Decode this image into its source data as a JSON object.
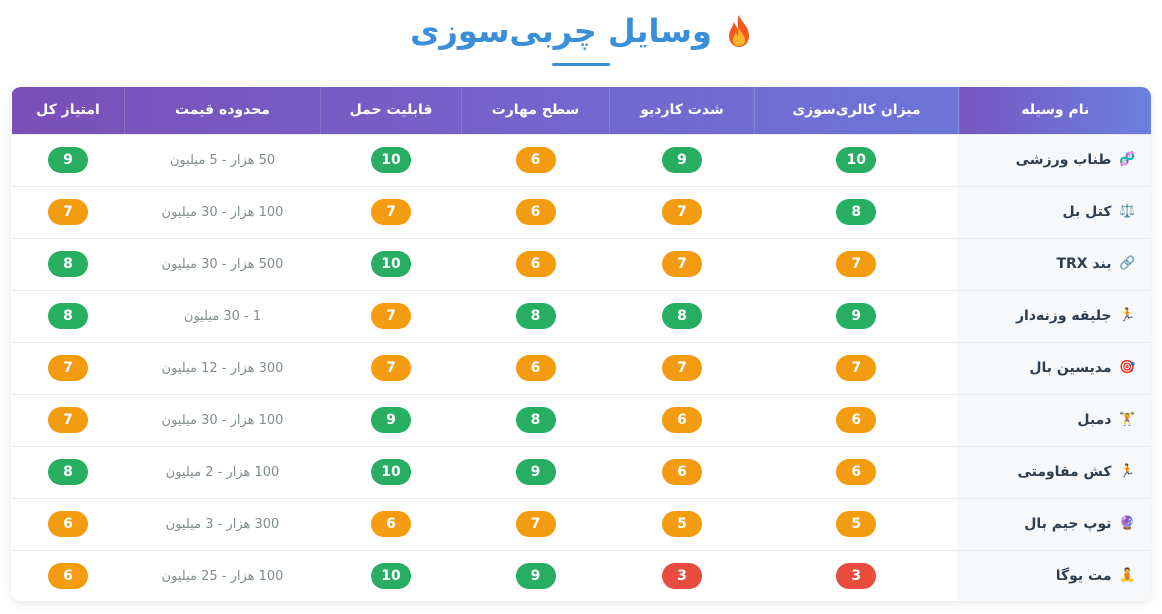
{
  "page": {
    "title": "وسایل چربی‌سوزی",
    "title_icon": "fire-icon",
    "accent_color": "#3a8fd8"
  },
  "table": {
    "headers": {
      "name": "نام وسیله",
      "calorie_burn": "میزان کالری‌سوزی",
      "cardio_intensity": "شدت کاردیو",
      "skill_level": "سطح مهارت",
      "portability": "قابلیت حمل",
      "price_range": "محدوده قیمت",
      "total_score": "امتیاز کل"
    },
    "colors": {
      "green": "#27ae60",
      "orange": "#f39c12",
      "red": "#e74c3c"
    },
    "rows": [
      {
        "icon": "jump-rope-icon",
        "emoji": "🧬",
        "name": "طناب ورزشی",
        "calorie": "10",
        "cardio": "9",
        "skill": "6",
        "portability": "10",
        "price": "50 هزار - 5 میلیون",
        "total": "9"
      },
      {
        "icon": "kettlebell-icon",
        "emoji": "⚖️",
        "name": "کتل بل",
        "calorie": "8",
        "cardio": "7",
        "skill": "6",
        "portability": "7",
        "price": "100 هزار - 30 میلیون",
        "total": "7"
      },
      {
        "icon": "trx-strap-icon",
        "emoji": "🔗",
        "name": "بند TRX",
        "calorie": "7",
        "cardio": "7",
        "skill": "6",
        "portability": "10",
        "price": "500 هزار - 30 میلیون",
        "total": "8"
      },
      {
        "icon": "weighted-vest-icon",
        "emoji": "🏃",
        "name": "جلیقه وزنه‌دار",
        "calorie": "9",
        "cardio": "8",
        "skill": "8",
        "portability": "7",
        "price": "1 - 30 میلیون",
        "total": "8"
      },
      {
        "icon": "medicine-ball-icon",
        "emoji": "🎯",
        "name": "مدیسین بال",
        "calorie": "7",
        "cardio": "7",
        "skill": "6",
        "portability": "7",
        "price": "300 هزار - 12 میلیون",
        "total": "7"
      },
      {
        "icon": "dumbbell-icon",
        "emoji": "🏋️",
        "name": "دمبل",
        "calorie": "6",
        "cardio": "6",
        "skill": "8",
        "portability": "9",
        "price": "100 هزار - 30 میلیون",
        "total": "7"
      },
      {
        "icon": "resistance-band-icon",
        "emoji": "🏃",
        "name": "کش مقاومتی",
        "calorie": "6",
        "cardio": "6",
        "skill": "9",
        "portability": "10",
        "price": "100 هزار - 2 میلیون",
        "total": "8"
      },
      {
        "icon": "gym-ball-icon",
        "emoji": "🔮",
        "name": "توپ جیم بال",
        "calorie": "5",
        "cardio": "5",
        "skill": "7",
        "portability": "6",
        "price": "300 هزار - 3 میلیون",
        "total": "6"
      },
      {
        "icon": "yoga-mat-icon",
        "emoji": "🧘",
        "name": "مت یوگا",
        "calorie": "3",
        "cardio": "3",
        "skill": "9",
        "portability": "10",
        "price": "100 هزار - 25 میلیون",
        "total": "6"
      }
    ]
  }
}
